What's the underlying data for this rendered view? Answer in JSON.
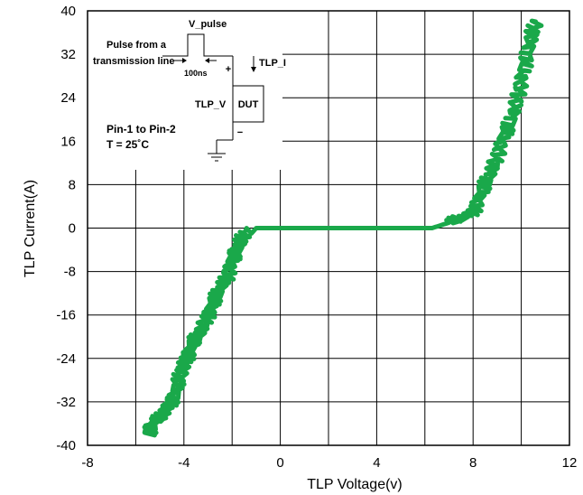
{
  "chart_data": {
    "type": "line",
    "title": "",
    "xlabel": "TLP Voltage(v)",
    "ylabel": "TLP Current(A)",
    "xlim": [
      -8,
      12
    ],
    "ylim": [
      -40,
      40
    ],
    "xticks": [
      -8,
      -4,
      0,
      4,
      8,
      12
    ],
    "yticks": [
      40,
      32,
      24,
      16,
      8,
      0,
      -8,
      -16,
      -24,
      -32,
      -40
    ],
    "grid": true,
    "series": [
      {
        "color": "#1aa84a",
        "x": [
          -5.5,
          -5.3,
          -5.0,
          -4.7,
          -4.4,
          -4.2,
          -4.0,
          -3.8,
          -3.6,
          -3.3,
          -3.0,
          -2.8,
          -2.5,
          -2.2,
          -2.0,
          -1.8,
          -1.6,
          -1.4,
          -1.2,
          -1.0,
          -0.8,
          0.0,
          2.0,
          4.0,
          6.3,
          7.0,
          7.6,
          8.0,
          8.3,
          8.6,
          8.9,
          9.2,
          9.5,
          9.8,
          10.0,
          10.2,
          10.4,
          10.6
        ],
        "y": [
          -38,
          -36,
          -35,
          -33,
          -31,
          -28,
          -25,
          -23,
          -21,
          -19,
          -16,
          -14,
          -11,
          -9,
          -6,
          -4,
          -2,
          0,
          -1,
          0,
          0,
          0,
          0,
          0,
          0,
          1,
          2,
          3,
          6,
          9,
          12,
          16,
          19,
          23,
          27,
          31,
          35,
          38
        ]
      }
    ],
    "inset": {
      "v_pulse": "V_pulse",
      "pulse_from_line1": "Pulse from a",
      "pulse_from_line2": "transmission line",
      "duration": "100ns",
      "tlp_i": "TLP_I",
      "tlp_v": "TLP_V",
      "dut": "DUT",
      "plus": "+",
      "minus": "−",
      "pin_label": "Pin-1 to Pin-2",
      "temp_label": "T = 25˚C"
    }
  }
}
